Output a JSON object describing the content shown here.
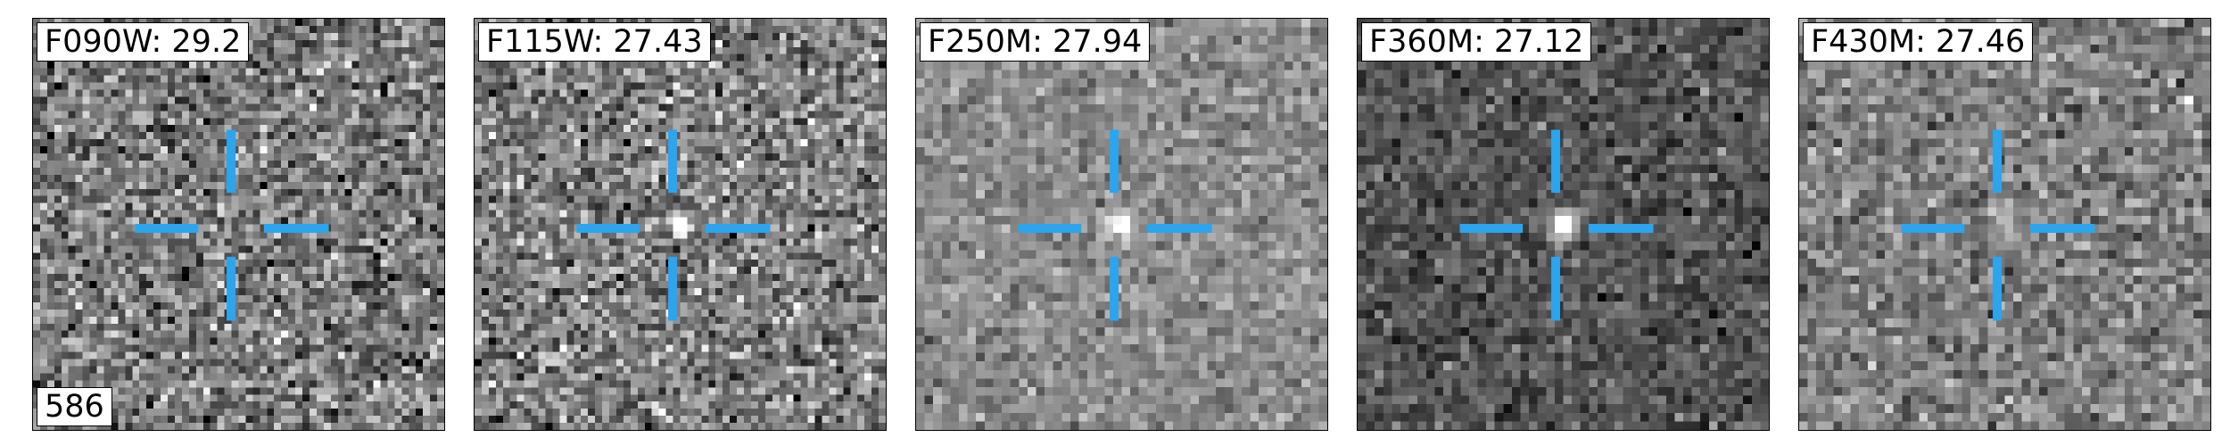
{
  "source_id": "586",
  "crosshair_color": "#2aa5ee",
  "panels": [
    {
      "filter": "F090W: 29.2",
      "source_brightness": 0.05,
      "noise_level": 1.0,
      "background": 0.48
    },
    {
      "filter": "F115W: 27.43",
      "source_brightness": 0.95,
      "noise_level": 1.0,
      "background": 0.5
    },
    {
      "filter": "F250M: 27.94",
      "source_brightness": 0.55,
      "noise_level": 0.55,
      "background": 0.55
    },
    {
      "filter": "F360M: 27.12",
      "source_brightness": 1.0,
      "noise_level": 0.6,
      "background": 0.33
    },
    {
      "filter": "F430M: 27.46",
      "source_brightness": 0.25,
      "noise_level": 0.7,
      "background": 0.5
    }
  ]
}
